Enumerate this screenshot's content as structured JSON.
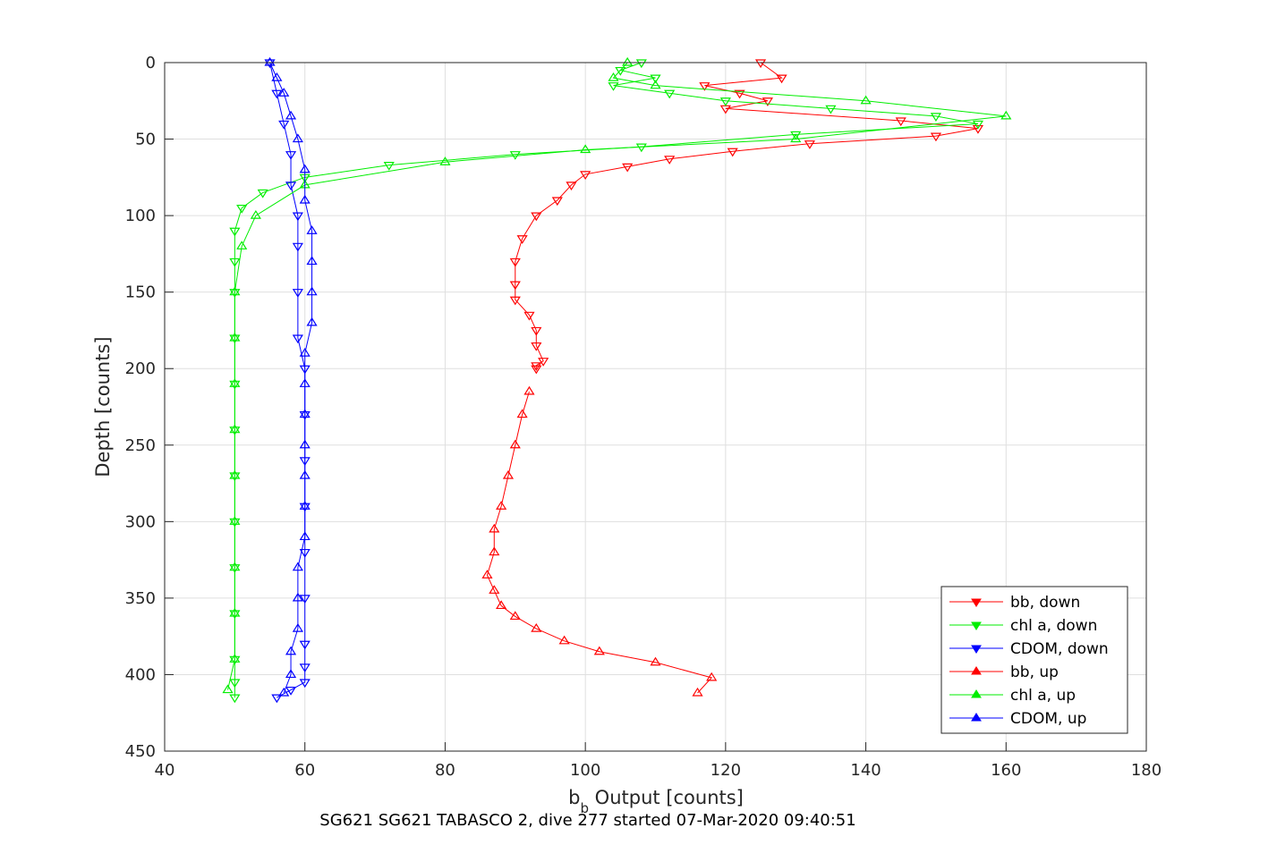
{
  "chart_data": {
    "type": "line",
    "xlabel_main": "b",
    "xlabel_sub": "b",
    "xlabel_rest": " Output [counts]",
    "ylabel": "Depth [counts]",
    "caption": "SG621 SG621 TABASCO 2, dive 277 started 07-Mar-2020 09:40:51",
    "xlim": [
      40,
      180
    ],
    "ylim": [
      0,
      450
    ],
    "y_reversed": true,
    "grid": true,
    "legend_position": "bottom-right",
    "xticks": [
      "40",
      "60",
      "80",
      "100",
      "120",
      "140",
      "160",
      "180"
    ],
    "yticks": [
      "0",
      "50",
      "100",
      "150",
      "200",
      "250",
      "300",
      "350",
      "400",
      "450"
    ],
    "series": [
      {
        "name": "bb, down",
        "color": "#ff0000",
        "marker": "triangle-down",
        "x": [
          125,
          128,
          117,
          122,
          126,
          120,
          145,
          156,
          150,
          132,
          121,
          112,
          106,
          100,
          98,
          96,
          93,
          91,
          90,
          90,
          90,
          92,
          93,
          93,
          94,
          93,
          93
        ],
        "y": [
          0,
          10,
          15,
          20,
          25,
          30,
          38,
          43,
          48,
          53,
          58,
          63,
          68,
          73,
          80,
          90,
          100,
          115,
          130,
          145,
          155,
          165,
          175,
          185,
          195,
          198,
          200
        ]
      },
      {
        "name": "chl a, down",
        "color": "#00ee00",
        "marker": "triangle-down",
        "x": [
          108,
          105,
          110,
          104,
          112,
          120,
          135,
          150,
          156,
          130,
          108,
          90,
          72,
          60,
          54,
          51,
          50,
          50,
          50,
          50,
          50,
          50,
          50,
          50,
          50,
          50,
          50,
          50,
          50
        ],
        "y": [
          0,
          5,
          10,
          15,
          20,
          25,
          30,
          35,
          40,
          47,
          55,
          60,
          67,
          75,
          85,
          95,
          110,
          130,
          150,
          180,
          210,
          240,
          270,
          300,
          330,
          360,
          390,
          405,
          415
        ]
      },
      {
        "name": "CDOM, down",
        "color": "#0000ff",
        "marker": "triangle-down",
        "x": [
          55,
          56,
          57,
          58,
          58,
          59,
          59,
          59,
          59,
          60,
          60,
          60,
          60,
          60,
          60,
          60,
          60,
          60,
          58,
          56
        ],
        "y": [
          0,
          20,
          40,
          60,
          80,
          100,
          120,
          150,
          180,
          200,
          230,
          260,
          290,
          320,
          350,
          380,
          395,
          405,
          410,
          415
        ]
      },
      {
        "name": "bb, up",
        "color": "#ff0000",
        "marker": "triangle-up",
        "x": [
          92,
          91,
          90,
          89,
          88,
          87,
          87,
          86,
          87,
          88,
          90,
          93,
          97,
          102,
          110,
          118,
          116
        ],
        "y": [
          215,
          230,
          250,
          270,
          290,
          305,
          320,
          335,
          345,
          355,
          362,
          370,
          378,
          385,
          392,
          402,
          412
        ]
      },
      {
        "name": "chl a, up",
        "color": "#00ee00",
        "marker": "triangle-up",
        "x": [
          49,
          50,
          50,
          50,
          50,
          50,
          50,
          50,
          50,
          50,
          51,
          53,
          60,
          80,
          100,
          130,
          160,
          140,
          110,
          104,
          106
        ],
        "y": [
          410,
          390,
          360,
          330,
          300,
          270,
          240,
          210,
          180,
          150,
          120,
          100,
          80,
          65,
          57,
          50,
          35,
          25,
          15,
          10,
          0
        ]
      },
      {
        "name": "CDOM, up",
        "color": "#0000ff",
        "marker": "triangle-up",
        "x": [
          57,
          58,
          58,
          59,
          59,
          59,
          60,
          60,
          60,
          60,
          60,
          60,
          60,
          61,
          61,
          61,
          61,
          60,
          60,
          59,
          58,
          57,
          56,
          55
        ],
        "y": [
          412,
          400,
          385,
          370,
          350,
          330,
          310,
          290,
          270,
          250,
          230,
          210,
          190,
          170,
          150,
          130,
          110,
          90,
          70,
          50,
          35,
          20,
          10,
          0
        ]
      }
    ]
  }
}
